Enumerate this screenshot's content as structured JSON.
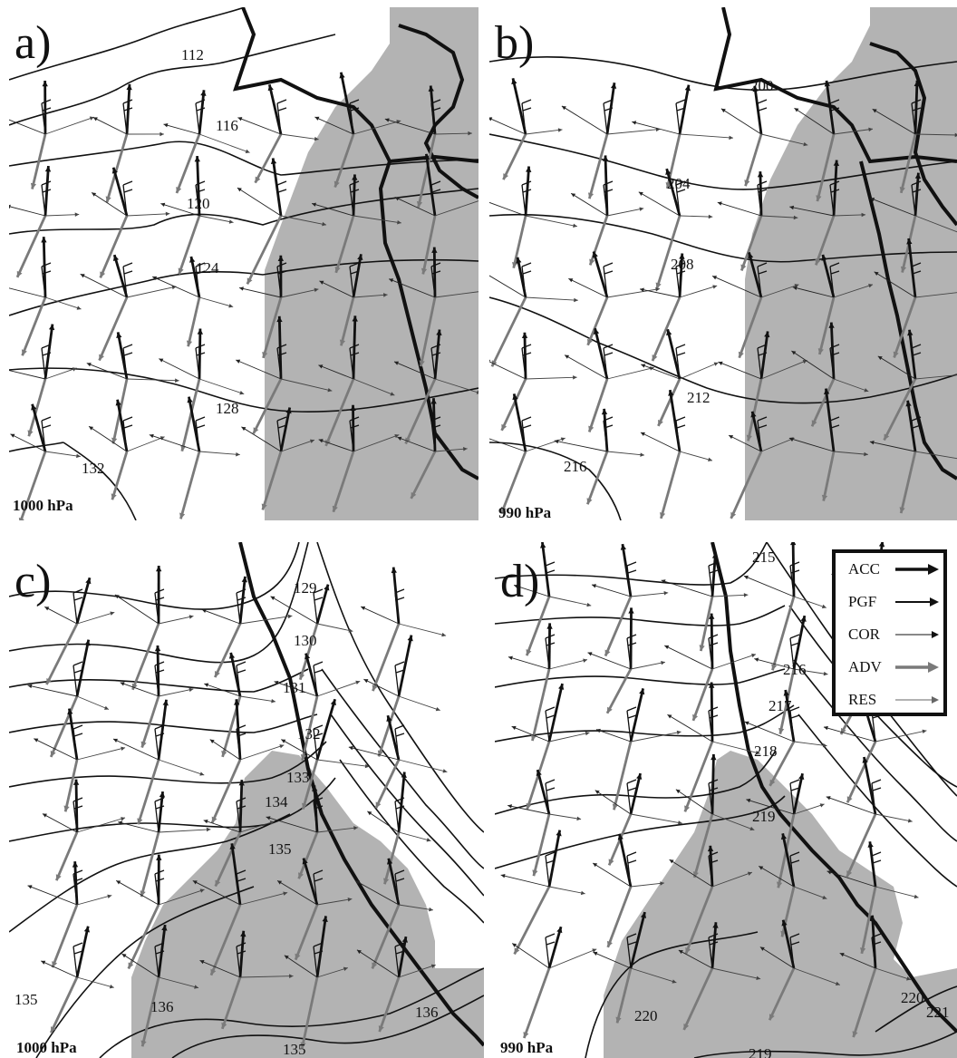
{
  "panels": [
    {
      "id": "a",
      "letter": "a)",
      "level": "1000 hPa",
      "contour_labels": [
        "112",
        "116",
        "120",
        "124",
        "128",
        "132"
      ]
    },
    {
      "id": "b",
      "letter": "b)",
      "level": "990 hPa",
      "contour_labels": [
        "200",
        "204",
        "208",
        "212",
        "216"
      ]
    },
    {
      "id": "c",
      "letter": "c)",
      "level": "1000 hPa",
      "contour_labels": [
        "129",
        "130",
        "131",
        "132",
        "133",
        "134",
        "135",
        "135",
        "136",
        "136",
        "135"
      ]
    },
    {
      "id": "d",
      "letter": "d)",
      "level": "990 hPa",
      "contour_labels": [
        "215",
        "216",
        "217",
        "218",
        "219",
        "220",
        "220",
        "221",
        "219"
      ]
    }
  ],
  "legend": [
    {
      "label": "ACC",
      "style": "acc"
    },
    {
      "label": "PGF",
      "style": "pgf"
    },
    {
      "label": "COR",
      "style": "cor"
    },
    {
      "label": "ADV",
      "style": "adv"
    },
    {
      "label": "RES",
      "style": "res"
    }
  ],
  "colors": {
    "shading": "#b3b3b3",
    "line": "#111111",
    "adv": "#7a7a7a"
  }
}
